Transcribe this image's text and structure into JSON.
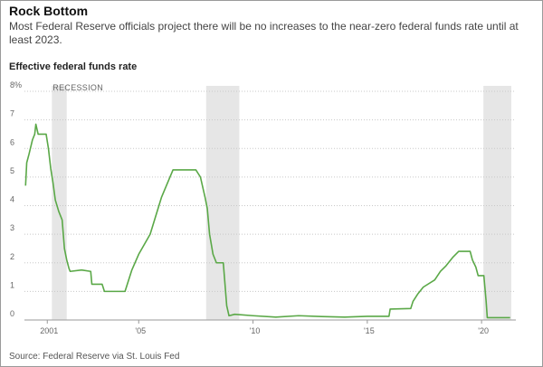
{
  "chart_data": {
    "type": "line",
    "title": "Rock Bottom",
    "subtitle": "Most Federal Reserve officials project there will be no increases to the near-zero federal funds rate until at least 2023.",
    "y_label": "Effective federal funds rate",
    "source": "Source: Federal Reserve via St. Louis Fed",
    "recession_label": "RECESSION",
    "recessions": [
      [
        2001.2,
        2001.85
      ],
      [
        2007.95,
        2009.4
      ],
      [
        2020.08,
        2021.3
      ]
    ],
    "recession_color": "#e6e6e6",
    "xlim": [
      2000,
      2021.5
    ],
    "ylim": [
      0,
      8
    ],
    "xticks": [
      {
        "value": 2001,
        "label": "2001"
      },
      {
        "value": 2005,
        "label": "'05"
      },
      {
        "value": 2010,
        "label": "'10"
      },
      {
        "value": 2015,
        "label": "'15"
      },
      {
        "value": 2020,
        "label": "'20"
      }
    ],
    "yticks": [
      0,
      1,
      2,
      3,
      4,
      5,
      6,
      7,
      {
        "value": 8,
        "label": "8%"
      }
    ],
    "grid": true,
    "x": [
      2000.05,
      2000.1,
      2000.2,
      2000.35,
      2000.45,
      2000.5,
      2000.6,
      2000.8,
      2000.95,
      2001.05,
      2001.15,
      2001.25,
      2001.35,
      2001.5,
      2001.65,
      2001.75,
      2001.85,
      2001.95,
      2002.0,
      2002.5,
      2002.9,
      2002.95,
      2003.4,
      2003.5,
      2004.4,
      2004.5,
      2004.7,
      2005.0,
      2005.5,
      2006.0,
      2006.5,
      2007.5,
      2007.7,
      2007.9,
      2008.0,
      2008.1,
      2008.25,
      2008.4,
      2008.7,
      2008.75,
      2008.85,
      2008.95,
      2009.2,
      2010.0,
      2011.0,
      2012.0,
      2013.0,
      2014.0,
      2015.0,
      2015.95,
      2016.0,
      2016.9,
      2017.0,
      2017.2,
      2017.45,
      2017.95,
      2018.2,
      2018.45,
      2018.75,
      2019.0,
      2019.5,
      2019.6,
      2019.75,
      2019.85,
      2020.1,
      2020.2,
      2020.25,
      2021.25
    ],
    "series": [
      {
        "name": "Effective federal funds rate",
        "color": "#5aa847",
        "values": [
          4.7,
          5.5,
          5.8,
          6.3,
          6.5,
          6.85,
          6.5,
          6.5,
          6.5,
          6.0,
          5.3,
          4.8,
          4.2,
          3.8,
          3.5,
          2.5,
          2.1,
          1.8,
          1.7,
          1.75,
          1.7,
          1.25,
          1.25,
          1.0,
          1.0,
          1.25,
          1.75,
          2.3,
          3.0,
          4.3,
          5.25,
          5.25,
          5.0,
          4.3,
          3.9,
          3.0,
          2.3,
          2.0,
          2.0,
          1.5,
          0.5,
          0.15,
          0.2,
          0.15,
          0.1,
          0.15,
          0.12,
          0.1,
          0.13,
          0.13,
          0.38,
          0.4,
          0.65,
          0.9,
          1.15,
          1.4,
          1.7,
          1.9,
          2.2,
          2.4,
          2.4,
          2.1,
          1.85,
          1.55,
          1.55,
          0.65,
          0.08,
          0.08
        ]
      }
    ]
  }
}
